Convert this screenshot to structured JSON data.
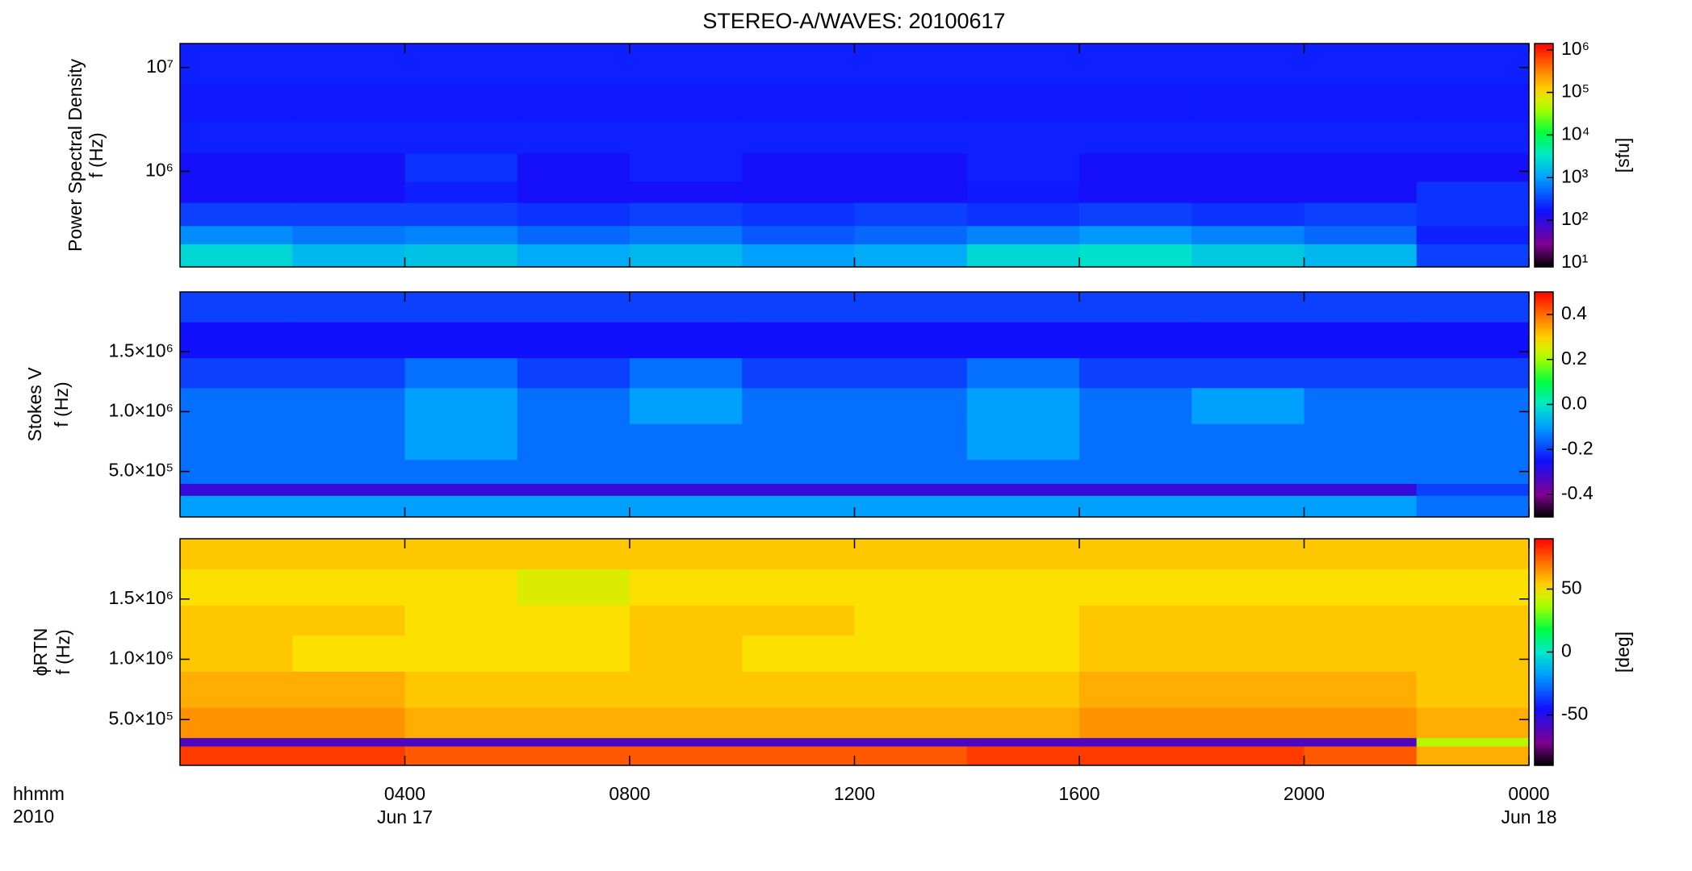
{
  "title": "STEREO-A/WAVES: 20100617",
  "x_label": [
    "hhmm",
    "2010"
  ],
  "xaxis": {
    "xlim": [
      0,
      24
    ],
    "xticks": [
      {
        "value": 4,
        "label": "0400"
      },
      {
        "value": 8,
        "label": "0800"
      },
      {
        "value": 12,
        "label": "1200"
      },
      {
        "value": 16,
        "label": "1600"
      },
      {
        "value": 20,
        "label": "2000"
      },
      {
        "value": 24,
        "label": "0000"
      }
    ],
    "date_labels": [
      {
        "value": 4,
        "label": "Jun 17"
      },
      {
        "value": 24,
        "label": "Jun 18"
      }
    ],
    "x_bins": [
      0,
      2,
      4,
      6,
      8,
      10,
      12,
      14,
      16,
      18,
      20,
      22,
      24
    ]
  },
  "chart_data": [
    {
      "type": "heatmap",
      "ylabel": [
        "Power Spectral Density",
        "f (Hz)"
      ],
      "log": true,
      "ylim": [
        120000,
        17000000
      ],
      "yticks": [
        {
          "value": 1000000,
          "label": "10⁶"
        },
        {
          "value": 10000000,
          "label": "10⁷"
        }
      ],
      "y_bins": [
        120000,
        200000,
        300000,
        500000,
        800000,
        1500000,
        3000000,
        7000000,
        17000000
      ],
      "values": [
        [
          2500,
          1500,
          1800,
          1200,
          1500,
          1000,
          1200,
          2500,
          3000,
          2000,
          1500,
          300
        ],
        [
          800,
          600,
          700,
          500,
          600,
          400,
          500,
          700,
          900,
          700,
          500,
          200
        ],
        [
          300,
          300,
          300,
          250,
          300,
          250,
          300,
          250,
          300,
          250,
          300,
          250
        ],
        [
          150,
          150,
          200,
          150,
          150,
          150,
          150,
          180,
          150,
          150,
          150,
          250
        ],
        [
          150,
          150,
          250,
          150,
          200,
          150,
          150,
          200,
          150,
          150,
          150,
          150
        ],
        [
          200,
          200,
          200,
          200,
          200,
          200,
          200,
          200,
          200,
          200,
          200,
          200
        ],
        [
          180,
          180,
          180,
          180,
          180,
          180,
          180,
          180,
          180,
          180,
          180,
          180
        ],
        [
          200,
          200,
          200,
          200,
          200,
          200,
          200,
          200,
          200,
          200,
          200,
          200
        ]
      ],
      "cbar": {
        "log": true,
        "lim": [
          8,
          1400000
        ],
        "label": "[sfu]",
        "ticks": [
          {
            "value": 10,
            "label": "10¹"
          },
          {
            "value": 100,
            "label": "10²"
          },
          {
            "value": 1000,
            "label": "10³"
          },
          {
            "value": 10000,
            "label": "10⁴"
          },
          {
            "value": 100000,
            "label": "10⁵"
          },
          {
            "value": 1000000,
            "label": "10⁶"
          }
        ]
      }
    },
    {
      "type": "heatmap",
      "ylabel": [
        "Stokes V",
        "f (Hz)"
      ],
      "log": false,
      "ylim": [
        120000,
        2000000
      ],
      "yticks": [
        {
          "value": 500000,
          "label": "5.0×10⁵"
        },
        {
          "value": 1000000,
          "label": "1.0×10⁶"
        },
        {
          "value": 1500000,
          "label": "1.5×10⁶"
        }
      ],
      "y_bins": [
        120000,
        300000,
        400000,
        600000,
        900000,
        1200000,
        1450000,
        1750000,
        2000000
      ],
      "values": [
        [
          -0.1,
          -0.1,
          -0.1,
          -0.1,
          -0.1,
          -0.1,
          -0.1,
          -0.1,
          -0.1,
          -0.1,
          -0.1,
          -0.15
        ],
        [
          -0.3,
          -0.3,
          -0.3,
          -0.3,
          -0.3,
          -0.3,
          -0.3,
          -0.3,
          -0.3,
          -0.3,
          -0.3,
          -0.2
        ],
        [
          -0.15,
          -0.15,
          -0.15,
          -0.15,
          -0.15,
          -0.15,
          -0.15,
          -0.15,
          -0.15,
          -0.15,
          -0.15,
          -0.15
        ],
        [
          -0.15,
          -0.15,
          -0.1,
          -0.15,
          -0.15,
          -0.15,
          -0.15,
          -0.1,
          -0.15,
          -0.15,
          -0.15,
          -0.15
        ],
        [
          -0.15,
          -0.15,
          -0.1,
          -0.15,
          -0.1,
          -0.15,
          -0.15,
          -0.1,
          -0.15,
          -0.1,
          -0.15,
          -0.15
        ],
        [
          -0.2,
          -0.2,
          -0.15,
          -0.2,
          -0.15,
          -0.2,
          -0.2,
          -0.15,
          -0.2,
          -0.2,
          -0.2,
          -0.2
        ],
        [
          -0.25,
          -0.25,
          -0.25,
          -0.25,
          -0.25,
          -0.25,
          -0.25,
          -0.25,
          -0.25,
          -0.25,
          -0.25,
          -0.25
        ],
        [
          -0.2,
          -0.2,
          -0.2,
          -0.2,
          -0.2,
          -0.2,
          -0.2,
          -0.2,
          -0.2,
          -0.2,
          -0.2,
          -0.2
        ]
      ],
      "cbar": {
        "log": false,
        "lim": [
          -0.5,
          0.5
        ],
        "ticks": [
          -0.4,
          -0.2,
          {
            "value": 0,
            "label": "0.0"
          },
          0.2,
          0.4
        ]
      }
    },
    {
      "type": "heatmap",
      "ylabel": [
        "ϕRTN",
        "f (Hz)"
      ],
      "log": false,
      "ylim": [
        120000,
        2000000
      ],
      "yticks": [
        {
          "value": 500000,
          "label": "5.0×10⁵"
        },
        {
          "value": 1000000,
          "label": "1.0×10⁶"
        },
        {
          "value": 1500000,
          "label": "1.5×10⁶"
        }
      ],
      "y_bins": [
        120000,
        280000,
        350000,
        600000,
        900000,
        1200000,
        1450000,
        1750000,
        2000000
      ],
      "values": [
        [
          80,
          80,
          75,
          75,
          75,
          75,
          75,
          80,
          80,
          80,
          75,
          60
        ],
        [
          -60,
          -60,
          -60,
          -60,
          -60,
          -60,
          -60,
          -60,
          -60,
          -60,
          -60,
          40
        ],
        [
          65,
          65,
          60,
          60,
          60,
          60,
          60,
          60,
          65,
          65,
          65,
          60
        ],
        [
          60,
          60,
          55,
          55,
          55,
          55,
          55,
          55,
          60,
          60,
          60,
          55
        ],
        [
          55,
          50,
          50,
          50,
          55,
          50,
          50,
          50,
          55,
          55,
          55,
          55
        ],
        [
          55,
          55,
          50,
          50,
          55,
          55,
          50,
          50,
          55,
          55,
          55,
          55
        ],
        [
          50,
          50,
          50,
          45,
          50,
          50,
          50,
          50,
          50,
          50,
          50,
          50
        ],
        [
          55,
          55,
          55,
          55,
          55,
          55,
          55,
          55,
          55,
          55,
          55,
          55
        ]
      ],
      "cbar": {
        "log": false,
        "lim": [
          -90,
          90
        ],
        "label": "[deg]",
        "ticks": [
          -50,
          0,
          50
        ]
      }
    }
  ]
}
